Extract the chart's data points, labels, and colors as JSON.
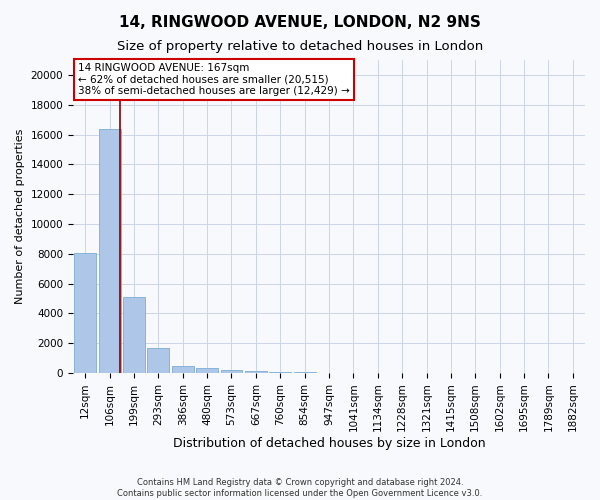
{
  "title": "14, RINGWOOD AVENUE, LONDON, N2 9NS",
  "subtitle": "Size of property relative to detached houses in London",
  "xlabel": "Distribution of detached houses by size in London",
  "ylabel": "Number of detached properties",
  "categories": [
    "12sqm",
    "106sqm",
    "199sqm",
    "293sqm",
    "386sqm",
    "480sqm",
    "573sqm",
    "667sqm",
    "760sqm",
    "854sqm",
    "947sqm",
    "1041sqm",
    "1134sqm",
    "1228sqm",
    "1321sqm",
    "1415sqm",
    "1508sqm",
    "1602sqm",
    "1695sqm",
    "1789sqm",
    "1882sqm"
  ],
  "values": [
    8050,
    16400,
    5100,
    1700,
    490,
    340,
    200,
    145,
    90,
    60,
    0,
    0,
    0,
    0,
    0,
    0,
    0,
    0,
    0,
    0,
    0
  ],
  "bar_color": "#aec6e8",
  "bar_edge_color": "#7bafd4",
  "vline_x": 1.42,
  "vline_color": "#880000",
  "annotation_text": "14 RINGWOOD AVENUE: 167sqm\n← 62% of detached houses are smaller (20,515)\n38% of semi-detached houses are larger (12,429) →",
  "annotation_box_edgecolor": "#cc0000",
  "annotation_fontsize": 7.5,
  "ylim": [
    0,
    21000
  ],
  "yticks": [
    0,
    2000,
    4000,
    6000,
    8000,
    10000,
    12000,
    14000,
    16000,
    18000,
    20000
  ],
  "footer_text": "Contains HM Land Registry data © Crown copyright and database right 2024.\nContains public sector information licensed under the Open Government Licence v3.0.",
  "title_fontsize": 11,
  "subtitle_fontsize": 9.5,
  "xlabel_fontsize": 9,
  "ylabel_fontsize": 8,
  "tick_fontsize": 7.5,
  "grid_color": "#ccd5e8",
  "background_color": "#f8f9fc"
}
